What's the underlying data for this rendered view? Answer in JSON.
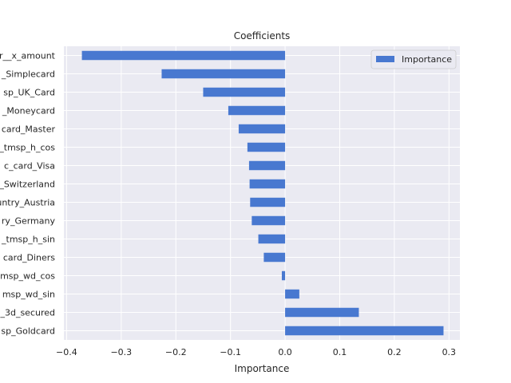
{
  "chart_data": {
    "type": "bar",
    "orientation": "horizontal",
    "title": "Coefficients",
    "xlabel": "Importance",
    "ylabel": "",
    "xlim": [
      -0.405,
      0.32
    ],
    "xticks": [
      -0.4,
      -0.3,
      -0.2,
      -0.1,
      0.0,
      0.1,
      0.2,
      0.3
    ],
    "xtick_labels": [
      "−0.4",
      "−0.3",
      "−0.2",
      "−0.1",
      "0.0",
      "0.1",
      "0.2",
      "0.3"
    ],
    "grid": true,
    "legend": {
      "position": "top-right",
      "entries": [
        "Importance"
      ]
    },
    "colors": {
      "bar": "#4878d0",
      "plot_background": "#eaeaf2",
      "grid": "#ffffff"
    },
    "categories": [
      "r__x_amount",
      "_Simplecard",
      "sp_UK_Card",
      "_Moneycard",
      "card_Master",
      "_tmsp_h_cos",
      "c_card_Visa",
      "_Switzerland",
      "untry_Austria",
      "ry_Germany",
      "_tmsp_h_sin",
      "card_Diners",
      "msp_wd_cos",
      "msp_wd_sin",
      "_3d_secured",
      "sp_Goldcard"
    ],
    "series": [
      {
        "name": "Importance",
        "values": [
          -0.372,
          -0.226,
          -0.15,
          -0.104,
          -0.085,
          -0.069,
          -0.066,
          -0.065,
          -0.064,
          -0.061,
          -0.049,
          -0.039,
          -0.006,
          0.026,
          0.135,
          0.29
        ]
      }
    ]
  }
}
